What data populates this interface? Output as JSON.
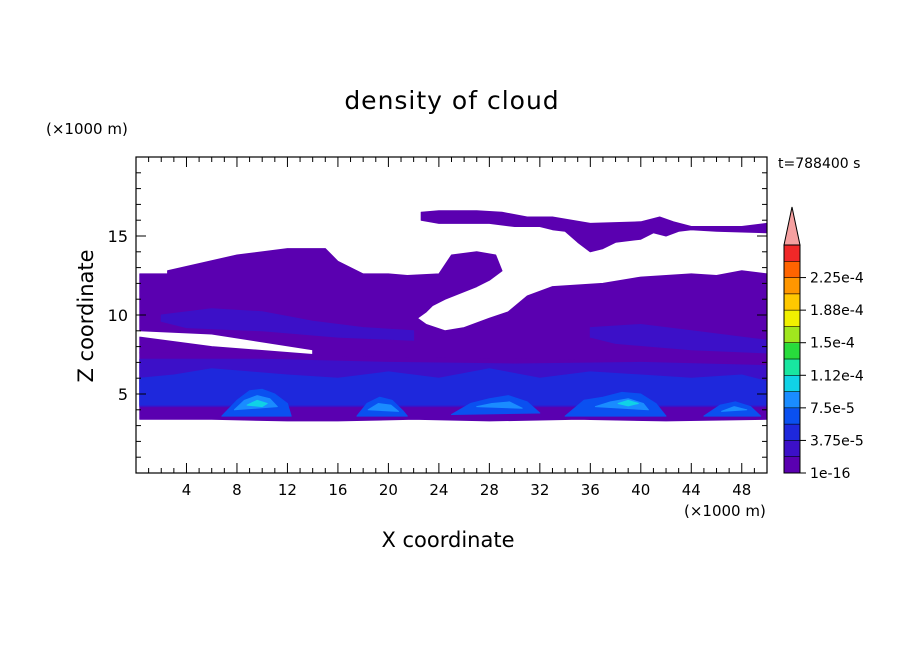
{
  "chart_data": {
    "type": "heatmap",
    "title": "density of cloud",
    "xlabel": "X coordinate",
    "ylabel": "Z coordinate",
    "x_unit": "(×1000 m)",
    "y_unit": "(×1000 m)",
    "time_label": "t=788400 s",
    "xlim": [
      0,
      50
    ],
    "ylim": [
      0,
      20
    ],
    "x_ticks": [
      4,
      8,
      12,
      16,
      20,
      24,
      28,
      32,
      36,
      40,
      44,
      48
    ],
    "y_ticks": [
      5,
      10,
      15
    ],
    "colorbar": {
      "levels": [
        "1e-16",
        "3.75e-5",
        "7.5e-5",
        "1.12e-4",
        "1.5e-4",
        "1.88e-4",
        "2.25e-4"
      ],
      "colors": [
        "#5a00b0",
        "#3c10c8",
        "#1e28dc",
        "#0a50f0",
        "#1a8cff",
        "#10d2e6",
        "#18e6a0",
        "#28dc3c",
        "#a0e61e",
        "#f0f000",
        "#ffc800",
        "#ff9600",
        "#ff6400",
        "#f02828"
      ],
      "extend_max_color": "#f5a0a0"
    },
    "regions": [
      {
        "level": 0,
        "polygon": [
          [
            0.3,
            12.6
          ],
          [
            2.5,
            12.6
          ],
          [
            2.5,
            12.8
          ],
          [
            8,
            13.8
          ],
          [
            12,
            14.2
          ],
          [
            15,
            14.2
          ],
          [
            16,
            13.4
          ],
          [
            18,
            12.6
          ],
          [
            20,
            12.6
          ],
          [
            21.5,
            12.5
          ],
          [
            24,
            12.6
          ],
          [
            25,
            13.8
          ],
          [
            27,
            14.0
          ],
          [
            28.5,
            13.8
          ],
          [
            29,
            12.8
          ],
          [
            28,
            12.2
          ],
          [
            27,
            11.8
          ],
          [
            24.5,
            11.0
          ],
          [
            23.5,
            10.6
          ],
          [
            23,
            10.2
          ],
          [
            22.3,
            9.8
          ],
          [
            23,
            9.4
          ],
          [
            24.5,
            9.0
          ],
          [
            26,
            9.2
          ],
          [
            28,
            9.8
          ],
          [
            29.5,
            10.2
          ],
          [
            31,
            11.2
          ],
          [
            33,
            11.8
          ],
          [
            37,
            12.0
          ],
          [
            40,
            12.4
          ],
          [
            44,
            12.6
          ],
          [
            46,
            12.5
          ],
          [
            48,
            12.8
          ],
          [
            50,
            12.6
          ],
          [
            50,
            7.0
          ],
          [
            30,
            7.2
          ],
          [
            20,
            7.3
          ],
          [
            0.3,
            7.6
          ],
          [
            0.3,
            8.6
          ],
          [
            6,
            8.0
          ],
          [
            14,
            7.5
          ],
          [
            14,
            7.8
          ],
          [
            6,
            8.8
          ],
          [
            0.3,
            9.0
          ]
        ]
      },
      {
        "level": 0,
        "polygon": [
          [
            22.6,
            16.5
          ],
          [
            24,
            16.6
          ],
          [
            27,
            16.6
          ],
          [
            29,
            16.5
          ],
          [
            31,
            16.2
          ],
          [
            33,
            16.2
          ],
          [
            36,
            15.8
          ],
          [
            40,
            15.9
          ],
          [
            41.5,
            16.2
          ],
          [
            42.6,
            15.9
          ],
          [
            44,
            15.6
          ],
          [
            46,
            15.6
          ],
          [
            48,
            15.6
          ],
          [
            50,
            15.8
          ],
          [
            50,
            15.2
          ],
          [
            46,
            15.3
          ],
          [
            44,
            15.4
          ],
          [
            43,
            15.3
          ],
          [
            42,
            15.0
          ],
          [
            41,
            15.2
          ],
          [
            40,
            14.8
          ],
          [
            38,
            14.6
          ],
          [
            37,
            14.2
          ],
          [
            36,
            14.0
          ],
          [
            35,
            14.6
          ],
          [
            34,
            15.3
          ],
          [
            33,
            15.4
          ],
          [
            32,
            15.6
          ],
          [
            30,
            15.6
          ],
          [
            28,
            15.8
          ],
          [
            24,
            15.8
          ],
          [
            22.6,
            16.0
          ]
        ]
      },
      {
        "level": 0,
        "polygon": [
          [
            0.3,
            7.6
          ],
          [
            20,
            7.3
          ],
          [
            30,
            7.2
          ],
          [
            50,
            7.0
          ],
          [
            50,
            3.4
          ],
          [
            42,
            3.3
          ],
          [
            35,
            3.4
          ],
          [
            28,
            3.3
          ],
          [
            22,
            3.4
          ],
          [
            16,
            3.3
          ],
          [
            12,
            3.3
          ],
          [
            6,
            3.4
          ],
          [
            0.3,
            3.4
          ]
        ]
      },
      {
        "level": 1,
        "polygon": [
          [
            2,
            10.0
          ],
          [
            6,
            10.4
          ],
          [
            10,
            10.2
          ],
          [
            14,
            9.6
          ],
          [
            18,
            9.2
          ],
          [
            22,
            9.0
          ],
          [
            22,
            8.4
          ],
          [
            16,
            8.6
          ],
          [
            10,
            9.0
          ],
          [
            4,
            9.2
          ],
          [
            2,
            9.6
          ]
        ]
      },
      {
        "level": 1,
        "polygon": [
          [
            36,
            9.2
          ],
          [
            40,
            9.4
          ],
          [
            44,
            9.0
          ],
          [
            48,
            8.6
          ],
          [
            50,
            8.4
          ],
          [
            50,
            7.6
          ],
          [
            44,
            7.8
          ],
          [
            38,
            8.2
          ],
          [
            36,
            8.6
          ]
        ]
      },
      {
        "level": 1,
        "polygon": [
          [
            0.3,
            7.2
          ],
          [
            10,
            7.2
          ],
          [
            20,
            7.0
          ],
          [
            30,
            6.9
          ],
          [
            40,
            7.0
          ],
          [
            50,
            6.8
          ],
          [
            50,
            4.2
          ],
          [
            0.3,
            4.2
          ]
        ]
      },
      {
        "level": 2,
        "polygon": [
          [
            0.3,
            6.0
          ],
          [
            3,
            6.2
          ],
          [
            6,
            6.6
          ],
          [
            9,
            6.4
          ],
          [
            12,
            6.2
          ],
          [
            16,
            6.0
          ],
          [
            20,
            6.4
          ],
          [
            24,
            6.0
          ],
          [
            28,
            6.6
          ],
          [
            32,
            6.0
          ],
          [
            36,
            6.4
          ],
          [
            40,
            6.2
          ],
          [
            44,
            6.0
          ],
          [
            48,
            6.2
          ],
          [
            50,
            5.8
          ],
          [
            50,
            4.3
          ],
          [
            0.3,
            4.3
          ]
        ]
      },
      {
        "level": 3,
        "polygon": [
          [
            6.8,
            3.6
          ],
          [
            8,
            4.6
          ],
          [
            9,
            5.2
          ],
          [
            10,
            5.3
          ],
          [
            11,
            5.0
          ],
          [
            12,
            4.4
          ],
          [
            12.3,
            3.6
          ]
        ]
      },
      {
        "level": 3,
        "polygon": [
          [
            17.5,
            3.6
          ],
          [
            18.3,
            4.4
          ],
          [
            19.3,
            4.8
          ],
          [
            20.3,
            4.6
          ],
          [
            21.2,
            3.9
          ],
          [
            21.5,
            3.6
          ]
        ]
      },
      {
        "level": 3,
        "polygon": [
          [
            25,
            3.7
          ],
          [
            26.5,
            4.4
          ],
          [
            28,
            4.7
          ],
          [
            29.5,
            4.9
          ],
          [
            31,
            4.5
          ],
          [
            32,
            3.8
          ]
        ]
      },
      {
        "level": 3,
        "polygon": [
          [
            34,
            3.6
          ],
          [
            35.5,
            4.6
          ],
          [
            37,
            4.8
          ],
          [
            38.5,
            5.1
          ],
          [
            40,
            5.0
          ],
          [
            41.2,
            4.4
          ],
          [
            42,
            3.6
          ]
        ]
      },
      {
        "level": 3,
        "polygon": [
          [
            45,
            3.6
          ],
          [
            46.3,
            4.3
          ],
          [
            47.5,
            4.5
          ],
          [
            48.7,
            4.2
          ],
          [
            49.5,
            3.6
          ]
        ]
      },
      {
        "level": 4,
        "polygon": [
          [
            7.8,
            4.0
          ],
          [
            8.6,
            4.6
          ],
          [
            9.6,
            4.9
          ],
          [
            10.6,
            4.7
          ],
          [
            11.2,
            4.2
          ]
        ]
      },
      {
        "level": 4,
        "polygon": [
          [
            18.4,
            4.0
          ],
          [
            19.2,
            4.4
          ],
          [
            20.2,
            4.3
          ],
          [
            20.8,
            3.9
          ]
        ]
      },
      {
        "level": 4,
        "polygon": [
          [
            27,
            4.2
          ],
          [
            28.2,
            4.4
          ],
          [
            29.6,
            4.5
          ],
          [
            30.6,
            4.1
          ]
        ]
      },
      {
        "level": 4,
        "polygon": [
          [
            36.4,
            4.2
          ],
          [
            37.6,
            4.5
          ],
          [
            39,
            4.7
          ],
          [
            40.2,
            4.4
          ],
          [
            40.6,
            4.0
          ]
        ]
      },
      {
        "level": 4,
        "polygon": [
          [
            46.4,
            3.9
          ],
          [
            47.4,
            4.2
          ],
          [
            48.4,
            4.0
          ]
        ]
      },
      {
        "level": 5,
        "polygon": [
          [
            8.8,
            4.3
          ],
          [
            9.6,
            4.6
          ],
          [
            10.4,
            4.4
          ],
          [
            10.0,
            4.2
          ]
        ]
      },
      {
        "level": 5,
        "polygon": [
          [
            38.2,
            4.4
          ],
          [
            39.0,
            4.6
          ],
          [
            39.8,
            4.4
          ],
          [
            39.0,
            4.25
          ]
        ]
      }
    ]
  }
}
